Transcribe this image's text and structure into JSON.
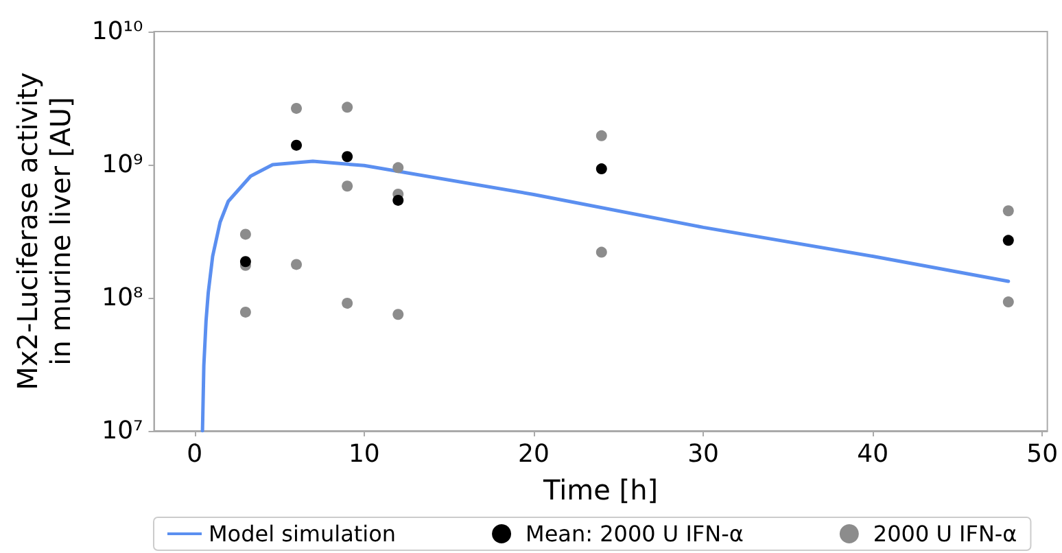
{
  "chart_data": {
    "type": "scatter",
    "xlabel": "Time [h]",
    "ylabel": "Mx2-Luciferase activity\nin murine liver [AU]",
    "log": "y",
    "grid": false,
    "legend": "bottom",
    "marker": "circle",
    "xlim": [
      -2.4,
      50.3
    ],
    "xticks": [
      0,
      10,
      20,
      30,
      40,
      50
    ],
    "ylim": [
      10000000,
      10000000000
    ],
    "yticks": [
      {
        "value": 10000000,
        "label": "10⁷"
      },
      {
        "value": 100000000,
        "label": "10⁸"
      },
      {
        "value": 1000000000,
        "label": "10⁹"
      },
      {
        "value": 10000000000,
        "label": "10¹⁰"
      }
    ],
    "series": [
      {
        "name": "Model simulation",
        "type": "line",
        "marker": "none",
        "color": "#5b8ff0",
        "x": [
          0.46,
          0.54,
          0.67,
          0.8,
          1.06,
          1.5,
          1.98,
          3.3,
          4.6,
          6.97,
          10,
          20,
          30,
          40,
          48
        ],
        "values": [
          10000000,
          31000000,
          67000000,
          109000000,
          205000000,
          370000000,
          530000000,
          820000000,
          1000000000,
          1060000000,
          985000000,
          597000000,
          338000000,
          205000000,
          133000000
        ]
      },
      {
        "name": "Mean: 2000 U IFN-α",
        "color": "#000000",
        "x": [
          3,
          6,
          9,
          12,
          24,
          48
        ],
        "values": [
          187000000,
          1400000000,
          1150000000,
          540000000,
          930000000,
          270000000
        ]
      },
      {
        "name": "2000 U IFN-α",
        "color": "#8c8c8c",
        "x": [
          3,
          3,
          3,
          6,
          6,
          9,
          9,
          9,
          12,
          12,
          12,
          24,
          24,
          48,
          48
        ],
        "values": [
          300000000,
          175000000,
          78000000,
          2650000000,
          178000000,
          2700000000,
          690000000,
          91000000,
          950000000,
          600000000,
          75000000,
          1650000000,
          220000000,
          450000000,
          93000000
        ]
      }
    ]
  }
}
